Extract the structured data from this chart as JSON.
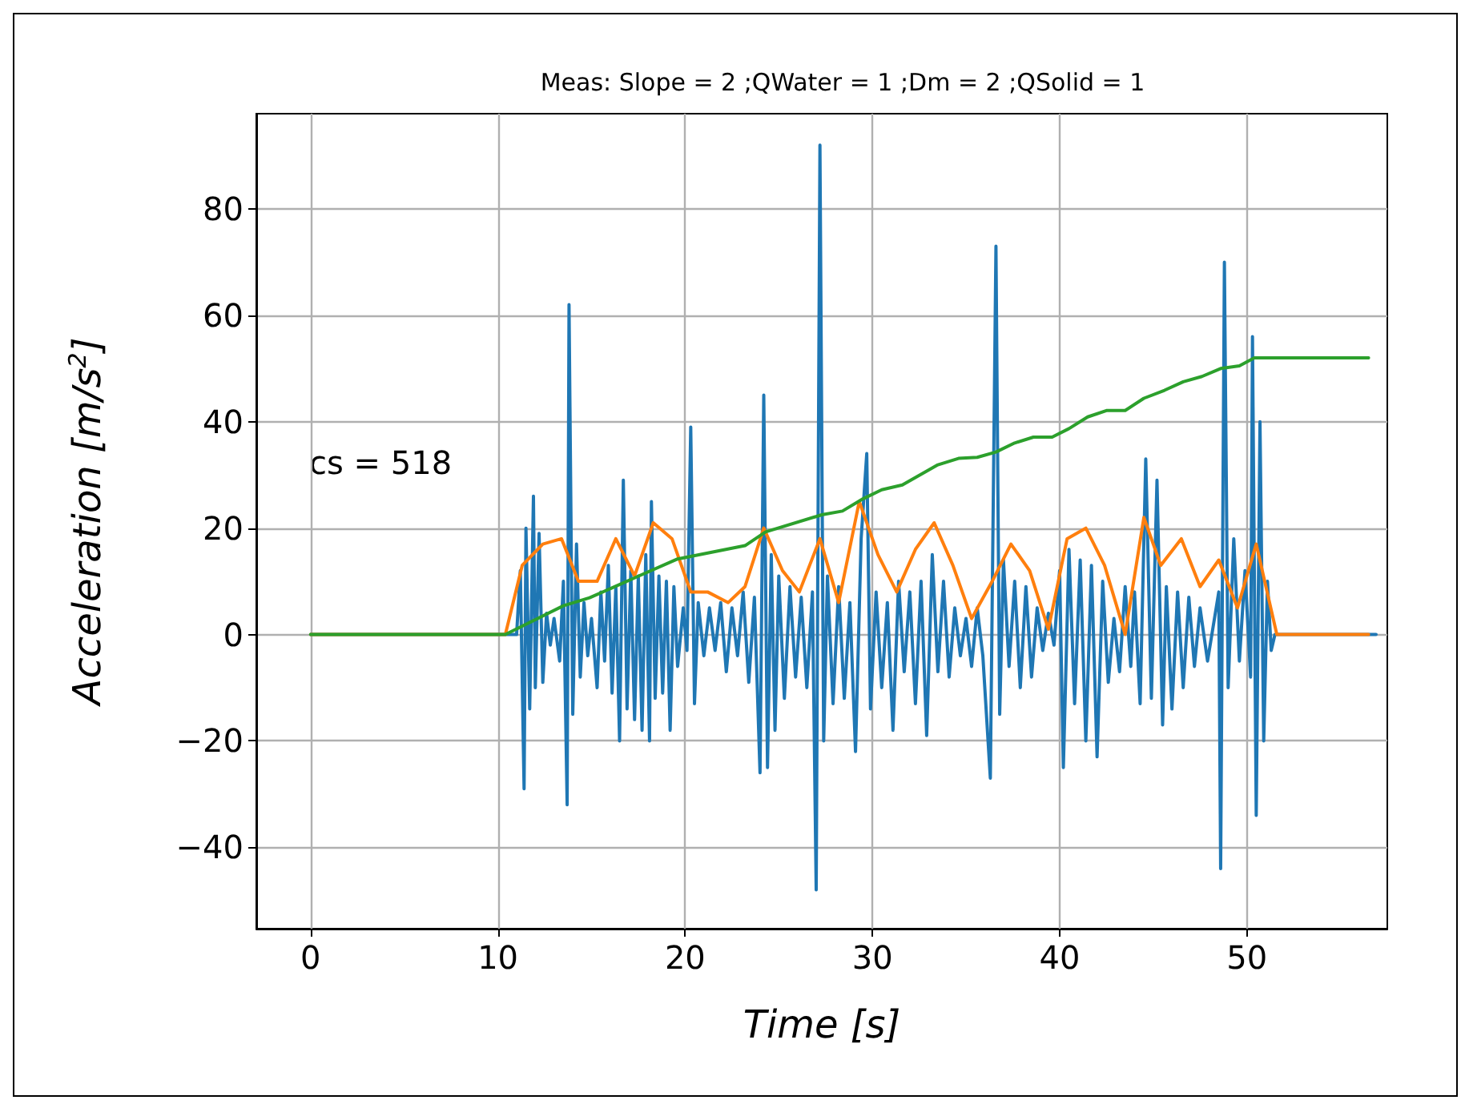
{
  "chart_data": {
    "type": "line",
    "title": "Meas: Slope = 2 ;QWater = 1 ;Dm = 2 ;QSolid = 1",
    "xlabel": "Time [s]",
    "ylabel": "Acceleration [m/s$^{2}$]",
    "annotations": [
      "cs = 518"
    ],
    "xlim": [
      -2.9,
      57.5
    ],
    "xticks": [
      0,
      10,
      20,
      30,
      40,
      50
    ],
    "ylim": [
      -55.3,
      97.9
    ],
    "yticks": [
      -40,
      -20,
      0,
      20,
      40,
      60,
      80
    ],
    "grid": true,
    "marker": "none",
    "line_style": "solid",
    "series": [
      {
        "color": "#1f77b4",
        "x": [
          0,
          11.0,
          11.2,
          11.4,
          11.5,
          11.7,
          11.9,
          12.0,
          12.2,
          12.4,
          12.6,
          12.8,
          13.0,
          13.3,
          13.5,
          13.7,
          13.8,
          14.0,
          14.2,
          14.4,
          14.6,
          14.8,
          15.0,
          15.3,
          15.5,
          15.7,
          15.9,
          16.1,
          16.3,
          16.5,
          16.7,
          16.9,
          17.1,
          17.3,
          17.5,
          17.7,
          17.9,
          18.1,
          18.2,
          18.4,
          18.6,
          18.8,
          19.0,
          19.2,
          19.4,
          19.6,
          19.9,
          20.1,
          20.3,
          20.5,
          20.7,
          21.0,
          21.3,
          21.6,
          21.9,
          22.2,
          22.5,
          22.8,
          23.1,
          23.4,
          23.7,
          24.0,
          24.2,
          24.4,
          24.6,
          24.8,
          25.0,
          25.3,
          25.6,
          25.9,
          26.2,
          26.5,
          26.8,
          27.0,
          27.2,
          27.4,
          27.6,
          27.9,
          28.2,
          28.5,
          28.8,
          29.1,
          29.4,
          29.7,
          29.9,
          30.2,
          30.5,
          30.8,
          31.1,
          31.4,
          31.7,
          32.0,
          32.3,
          32.6,
          32.9,
          33.2,
          33.5,
          33.8,
          34.1,
          34.4,
          34.7,
          35.0,
          35.3,
          35.6,
          35.9,
          36.3,
          36.6,
          36.8,
          37.0,
          37.3,
          37.6,
          37.9,
          38.2,
          38.5,
          38.8,
          39.1,
          39.4,
          39.7,
          40.0,
          40.2,
          40.5,
          40.8,
          41.1,
          41.4,
          41.7,
          42.0,
          42.3,
          42.6,
          42.9,
          43.2,
          43.5,
          43.8,
          44.0,
          44.3,
          44.6,
          44.9,
          45.2,
          45.5,
          45.7,
          46.0,
          46.3,
          46.6,
          46.9,
          47.2,
          47.5,
          47.9,
          48.5,
          48.6,
          48.8,
          49.0,
          49.3,
          49.6,
          49.9,
          50.2,
          50.3,
          50.5,
          50.7,
          50.9,
          51.1,
          51.3,
          51.5,
          56.9
        ],
        "values": [
          0,
          0,
          12,
          -29,
          20,
          -14,
          26,
          -10,
          19,
          -9,
          4,
          -2,
          3,
          -5,
          10,
          -32,
          62,
          -15,
          17,
          -8,
          6,
          -4,
          3,
          -10,
          8,
          -5,
          13,
          -11,
          9,
          -20,
          29,
          -14,
          12,
          -16,
          11,
          -18,
          15,
          -20,
          25,
          -12,
          11,
          -11,
          10,
          -18,
          9,
          -6,
          5,
          -3,
          39,
          -13,
          6,
          -4,
          5,
          -3,
          6,
          -7,
          5,
          -4,
          8,
          -9,
          7,
          -26,
          45,
          -25,
          15,
          -18,
          11,
          -12,
          9,
          -8,
          7,
          -10,
          8,
          -48,
          92,
          -20,
          11,
          -13,
          9,
          -12,
          6,
          -22,
          18,
          34,
          -14,
          8,
          -10,
          6,
          -18,
          10,
          -7,
          8,
          -13,
          10,
          -19,
          15,
          -7,
          10,
          -8,
          5,
          -4,
          3,
          -6,
          5,
          -4,
          -27,
          73,
          -15,
          14,
          -6,
          10,
          -10,
          9,
          -8,
          5,
          -3,
          4,
          -2,
          12,
          -25,
          16,
          -13,
          14,
          -20,
          13,
          -23,
          10,
          -9,
          3,
          -7,
          9,
          -6,
          8,
          -13,
          33,
          -12,
          29,
          -17,
          9,
          -14,
          8,
          -10,
          7,
          -6,
          5,
          -5,
          8,
          -44,
          70,
          -10,
          18,
          -5,
          12,
          -8,
          56,
          -34,
          40,
          -20,
          10,
          -3,
          0,
          0
        ]
      },
      {
        "color": "#ff7f0e",
        "x": [
          0,
          10.4,
          11.3,
          12.4,
          13.4,
          14.3,
          15.3,
          16.3,
          17.3,
          18.3,
          19.3,
          20.3,
          21.2,
          22.3,
          23.2,
          24.2,
          25.2,
          26.1,
          27.2,
          28.2,
          29.3,
          30.3,
          31.3,
          32.3,
          33.3,
          34.3,
          35.3,
          36.4,
          37.4,
          38.4,
          39.4,
          40.4,
          41.4,
          42.4,
          43.5,
          44.5,
          45.4,
          46.5,
          47.5,
          48.5,
          49.5,
          50.5,
          51.6,
          56.5
        ],
        "values": [
          0,
          0,
          13,
          17,
          18,
          10,
          10,
          18,
          11,
          21,
          18,
          8,
          8,
          6,
          9,
          20,
          12,
          8,
          18,
          6,
          25,
          15,
          8,
          16,
          21,
          13,
          3,
          10,
          17,
          12,
          1,
          18,
          20,
          13,
          0,
          22,
          13,
          18,
          9,
          14,
          5,
          17,
          0,
          0
        ]
      },
      {
        "color": "#2ca02c",
        "x": [
          0,
          10.4,
          13.5,
          14.9,
          17.4,
          19.6,
          23.2,
          24.3,
          27.3,
          28.4,
          29.5,
          30.5,
          31.6,
          33.5,
          34.6,
          35.6,
          36.6,
          37.6,
          38.6,
          39.6,
          40.5,
          41.5,
          42.5,
          43.5,
          44.5,
          45.6,
          46.6,
          47.6,
          48.6,
          49.6,
          50.4,
          56.5
        ],
        "values": [
          0,
          0,
          5.4,
          6.9,
          10.8,
          14.2,
          16.7,
          19.3,
          22.5,
          23.2,
          25.5,
          27.2,
          28.1,
          31.9,
          33.1,
          33.3,
          34.3,
          36,
          37.1,
          37.1,
          38.7,
          40.9,
          42.1,
          42.1,
          44.4,
          45.9,
          47.5,
          48.5,
          50,
          50.5,
          52,
          52
        ]
      }
    ]
  }
}
